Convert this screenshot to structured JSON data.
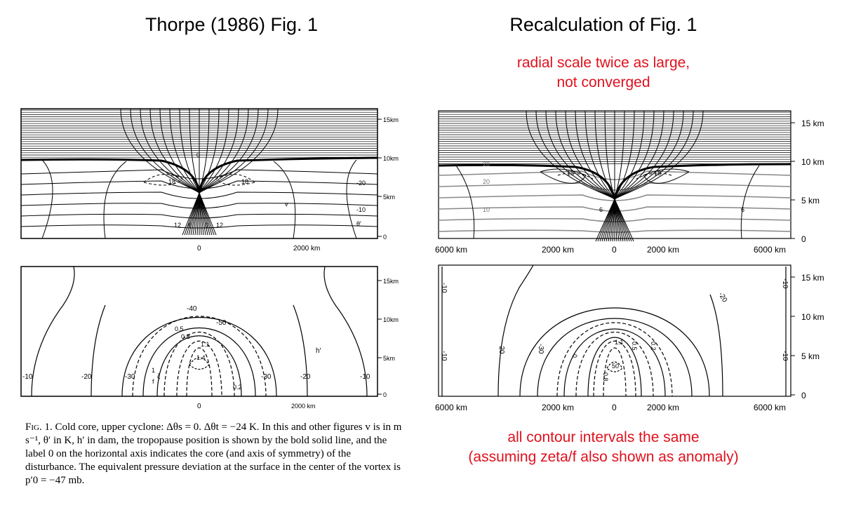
{
  "left_title": "Thorpe (1986) Fig. 1",
  "right_title": "Recalculation of  Fig. 1",
  "note_top": [
    "radial scale twice as large,",
    "not converged"
  ],
  "note_bottom": [
    "all contour intervals the same",
    "(assuming zeta/f also shown as anomaly)"
  ],
  "caption": {
    "fig_label": "Fig. 1.",
    "text": " Cold core, upper cyclone: Δθs = 0. Δθt = −24 K. In this and other figures v is in m s⁻¹, θ′ in K, h′ in dam, the tropopause position is shown by the bold solid line, and the label 0 on the horizontal axis indicates the core (and axis of symmetry) of the disturbance. The equivalent pressure deviation at the surface in the center of the vortex is p′0 = −47 mb."
  },
  "left_panels": {
    "height_ticks": [
      "15km",
      "10km",
      "5km",
      "0"
    ],
    "x_ticks": [
      "0",
      "2000 km"
    ],
    "top_labels": [
      "0",
      "18",
      "18",
      "-20",
      "-10",
      "θ′",
      "v",
      "12",
      "6",
      "6",
      "12"
    ],
    "bottom_labels": [
      "-10",
      "-20",
      "-30",
      "-30",
      "-20",
      "-10",
      "-40",
      "-50",
      "0.5",
      "0.8",
      "1.1",
      "1.4",
      "h′",
      "0.2",
      "1",
      "f",
      "ζ"
    ]
  },
  "right_panels": {
    "height_ticks": [
      "15 km",
      "10 km",
      "5 km",
      "0"
    ],
    "x_ticks": [
      "6000 km",
      "2000 km",
      "0",
      "2000 km",
      "6000 km"
    ],
    "top_labels": [
      "20",
      "20",
      "10",
      "18",
      "18",
      "6",
      "6"
    ],
    "bottom_labels": [
      "-10",
      "-20",
      "-30",
      "-10",
      "-20",
      "-10",
      "-10",
      "1.1",
      "50",
      "0.8",
      "0.5",
      "0.2",
      "0"
    ]
  },
  "colors": {
    "note": "#e0111d",
    "line": "#000000",
    "theta_grey": "#888888"
  }
}
